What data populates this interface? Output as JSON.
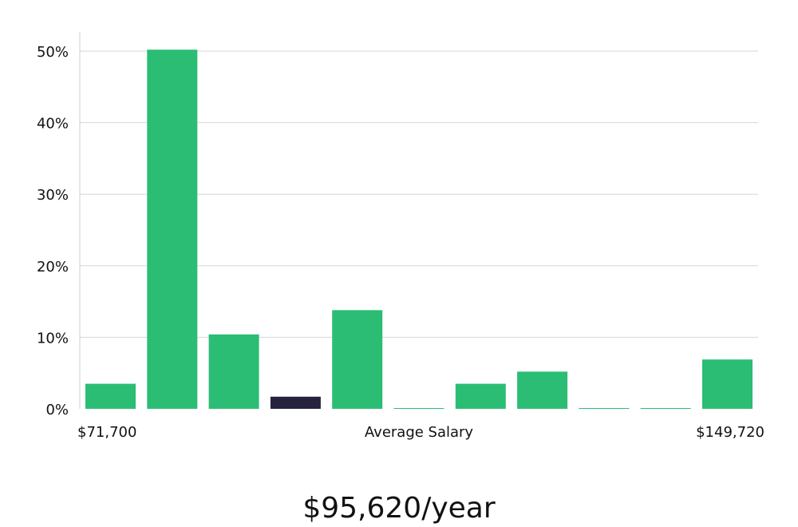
{
  "chart_data": {
    "type": "bar",
    "title": "",
    "xlabel": "Average Salary",
    "ylabel": "",
    "x_range_labels": {
      "min": "$71,700",
      "max": "$149,720"
    },
    "ylim": [
      0,
      52
    ],
    "yticks": [
      0,
      10,
      20,
      30,
      40,
      50
    ],
    "ytick_labels": [
      "0%",
      "10%",
      "20%",
      "30%",
      "40%",
      "50%"
    ],
    "grid": true,
    "values": [
      3.5,
      50.2,
      10.4,
      1.7,
      13.8,
      0.1,
      3.5,
      5.2,
      0.1,
      0.1,
      6.9
    ],
    "highlight_index": 3,
    "colors": {
      "bar": "#2bbd74",
      "highlight": "#26233f",
      "grid": "#d6d6d6",
      "axis": "#cfcfcf"
    },
    "salary_summary": "$95,620/year"
  }
}
